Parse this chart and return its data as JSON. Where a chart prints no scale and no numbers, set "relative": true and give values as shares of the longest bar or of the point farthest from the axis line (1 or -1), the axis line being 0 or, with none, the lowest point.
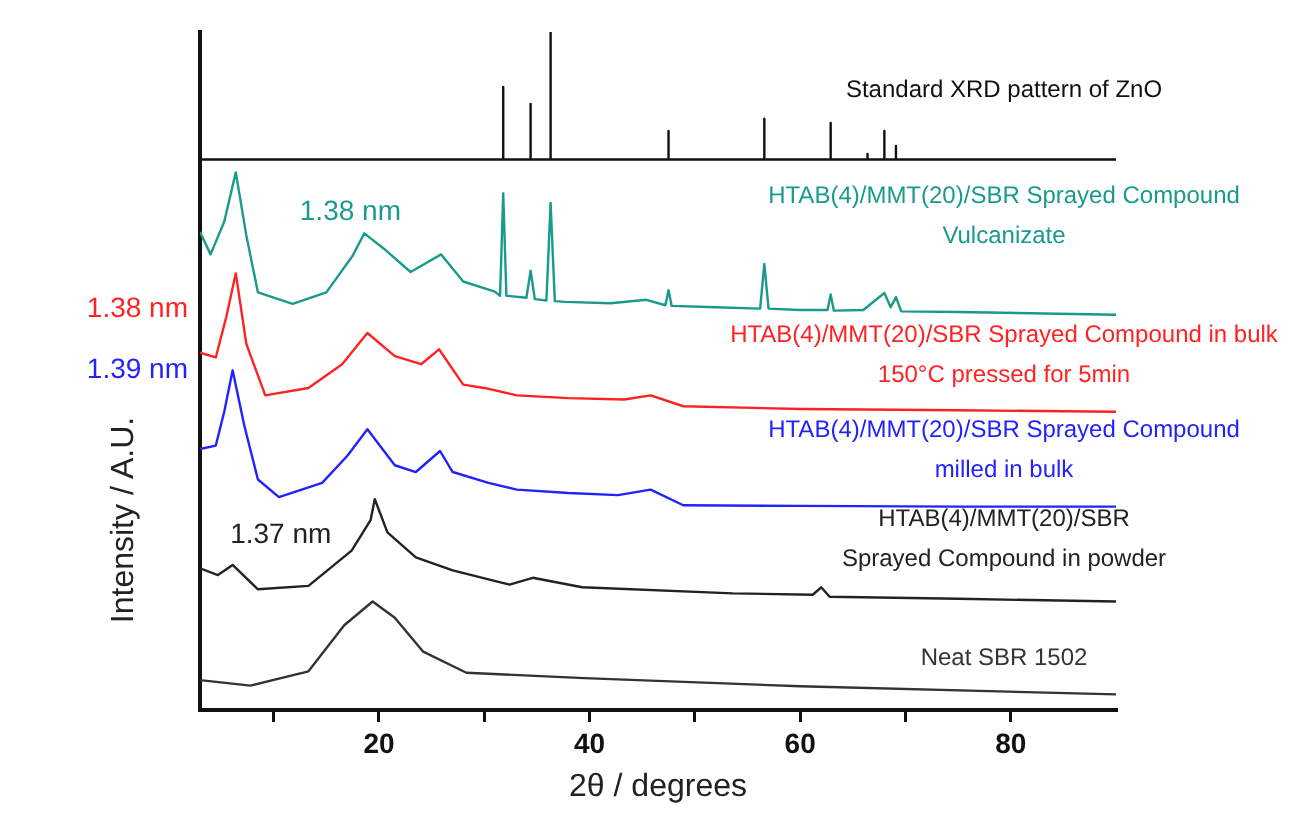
{
  "chart_data": {
    "type": "line",
    "xlabel": "2θ / degrees",
    "ylabel": "Intensity / A.U.",
    "relative": true,
    "xlim": [
      3,
      90
    ],
    "xticks": [
      {
        "value": 10,
        "label": null
      },
      20,
      {
        "value": 30,
        "label": null
      },
      40,
      {
        "value": 50,
        "label": null
      },
      60,
      {
        "value": 70,
        "label": null
      },
      80
    ],
    "grid": false,
    "legend": false,
    "marker": "none",
    "line_style": "solid",
    "series": [
      {
        "name": "Standard XRD pattern of ZnO",
        "color": "#111111",
        "x": [
          3,
          31.8,
          31.8,
          31.8,
          34.4,
          34.4,
          34.4,
          36.3,
          36.3,
          36.3,
          47.5,
          47.5,
          47.5,
          56.6,
          56.6,
          56.6,
          62.9,
          62.9,
          62.9,
          66.4,
          66.4,
          66.4,
          68.0,
          68.0,
          68.0,
          69.1,
          69.1,
          69.1,
          90
        ],
        "values": [
          0.812,
          0.812,
          0.919,
          0.812,
          0.812,
          0.894,
          0.812,
          0.812,
          1.0,
          0.812,
          0.812,
          0.854,
          0.812,
          0.812,
          0.872,
          0.812,
          0.812,
          0.866,
          0.812,
          0.812,
          0.82,
          0.812,
          0.812,
          0.854,
          0.812,
          0.812,
          0.832,
          0.812,
          0.812
        ]
      },
      {
        "name": "HTAB(4)/MMT(20)/SBR Sprayed Compound\nVulcanizate",
        "color": "#1a9a8c",
        "x": [
          3,
          4,
          5.3,
          6.4,
          7.4,
          8.5,
          11.8,
          15,
          17.5,
          18.6,
          20.5,
          23,
          25.9,
          28,
          31,
          31.5,
          31.8,
          32.1,
          34,
          34.4,
          34.8,
          35.9,
          36.3,
          36.7,
          37.7,
          42,
          45.4,
          47.2,
          47.5,
          47.8,
          52,
          56.2,
          56.6,
          57,
          60,
          62.6,
          62.9,
          63.2,
          66,
          68,
          68.6,
          69.1,
          69.6,
          75,
          90
        ],
        "values": [
          0.705,
          0.672,
          0.72,
          0.793,
          0.7,
          0.616,
          0.599,
          0.616,
          0.67,
          0.703,
          0.68,
          0.646,
          0.672,
          0.632,
          0.617,
          0.611,
          0.762,
          0.611,
          0.608,
          0.648,
          0.606,
          0.604,
          0.748,
          0.603,
          0.602,
          0.6,
          0.605,
          0.597,
          0.619,
          0.596,
          0.594,
          0.592,
          0.658,
          0.592,
          0.59,
          0.59,
          0.613,
          0.589,
          0.59,
          0.615,
          0.594,
          0.609,
          0.588,
          0.587,
          0.583
        ]
      },
      {
        "name": "HTAB(4)/MMT(20)/SBR Sprayed Compound in bulk\n150°C pressed for 5min",
        "color": "#ff2222",
        "x": [
          3,
          4.5,
          5.5,
          6.4,
          7.4,
          9.2,
          13.3,
          16.5,
          18.9,
          21.5,
          24,
          25.7,
          28,
          30,
          33.1,
          38,
          43.3,
          45.8,
          48.9,
          60,
          75,
          90
        ],
        "values": [
          0.527,
          0.52,
          0.58,
          0.644,
          0.54,
          0.464,
          0.475,
          0.51,
          0.556,
          0.522,
          0.51,
          0.532,
          0.48,
          0.475,
          0.464,
          0.46,
          0.458,
          0.464,
          0.448,
          0.444,
          0.442,
          0.44
        ]
      },
      {
        "name": "HTAB(4)/MMT(20)/SBR Sprayed Compound\nmilled in bulk",
        "color": "#2222ff",
        "x": [
          3,
          4.5,
          5.3,
          6.1,
          7.2,
          8.5,
          10.5,
          14.6,
          17,
          18.9,
          21.5,
          23.5,
          25.8,
          27,
          30.4,
          33.1,
          38,
          42.7,
          45.8,
          48.9,
          60,
          75,
          90
        ],
        "values": [
          0.385,
          0.39,
          0.44,
          0.501,
          0.42,
          0.34,
          0.314,
          0.335,
          0.375,
          0.414,
          0.361,
          0.351,
          0.382,
          0.351,
          0.335,
          0.325,
          0.32,
          0.317,
          0.325,
          0.302,
          0.301,
          0.3,
          0.3
        ]
      },
      {
        "name": "HTAB(4)/MMT(20)/SBR\nSprayed Compound in powder",
        "color": "#222222",
        "x": [
          3,
          4.7,
          6.1,
          8.5,
          13.3,
          17.4,
          19.2,
          19.6,
          20.8,
          23.5,
          27,
          32.4,
          34.6,
          39.3,
          53.6,
          61.2,
          62,
          62.8,
          75,
          90
        ],
        "values": [
          0.209,
          0.199,
          0.214,
          0.178,
          0.183,
          0.235,
          0.28,
          0.311,
          0.262,
          0.225,
          0.206,
          0.185,
          0.195,
          0.181,
          0.172,
          0.17,
          0.181,
          0.167,
          0.164,
          0.16
        ]
      },
      {
        "name": "Neat SBR 1502",
        "color": "#333333",
        "x": [
          3,
          7.8,
          13.3,
          16.7,
          19.4,
          21.5,
          24.2,
          28.3,
          39.5,
          60,
          90
        ],
        "values": [
          0.044,
          0.036,
          0.057,
          0.125,
          0.16,
          0.136,
          0.086,
          0.055,
          0.047,
          0.035,
          0.023
        ]
      }
    ],
    "annotations": [
      "1.38 nm",
      "1.38 nm",
      "1.39 nm",
      "1.37 nm"
    ]
  }
}
